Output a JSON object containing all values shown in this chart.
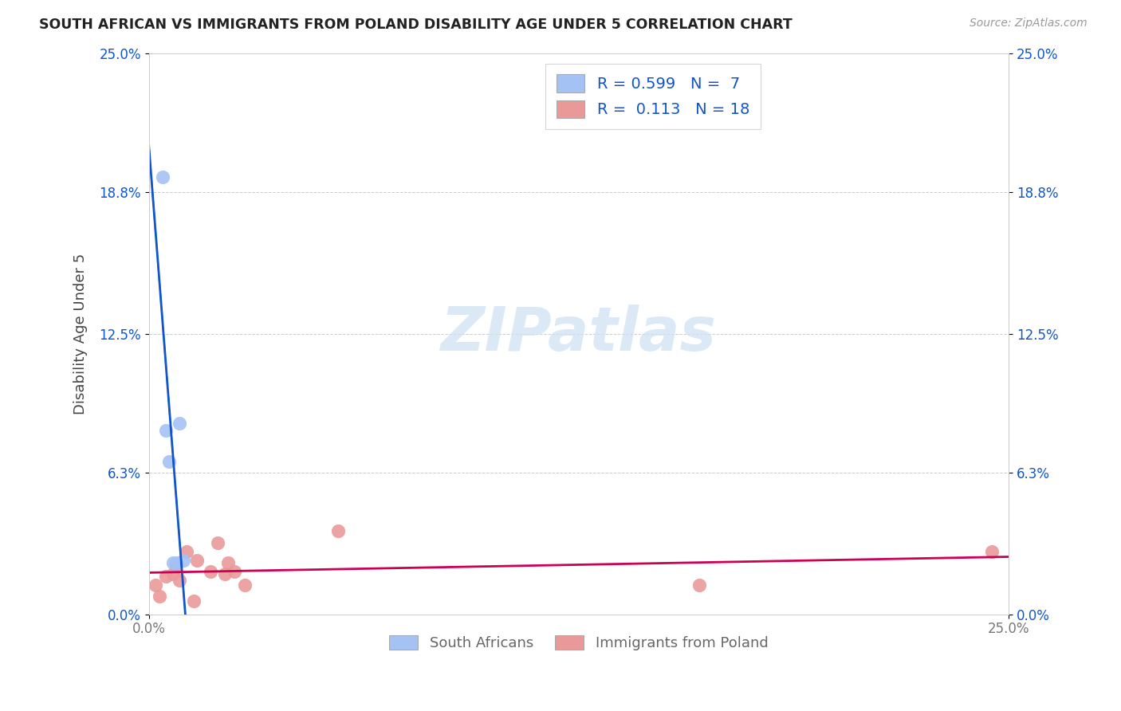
{
  "title": "SOUTH AFRICAN VS IMMIGRANTS FROM POLAND DISABILITY AGE UNDER 5 CORRELATION CHART",
  "source": "Source: ZipAtlas.com",
  "ylabel": "Disability Age Under 5",
  "xlim": [
    0.0,
    0.25
  ],
  "ylim": [
    0.0,
    0.25
  ],
  "ytick_vals": [
    0.0,
    0.063,
    0.125,
    0.188,
    0.25
  ],
  "ytick_labels": [
    "0.0%",
    "6.3%",
    "12.5%",
    "18.8%",
    "25.0%"
  ],
  "xtick_vals": [
    0.0,
    0.25
  ],
  "xtick_labels": [
    "0.0%",
    "25.0%"
  ],
  "grid_color": "#cccccc",
  "bg_color": "#ffffff",
  "blue_color": "#a4c2f4",
  "pink_color": "#ea9999",
  "blue_line_color": "#1155cc",
  "pink_line_color": "#cc0055",
  "watermark_color": "#cfe2f3",
  "watermark_text": "ZIPatlas",
  "legend_line1": "R = 0.599   N =  7",
  "legend_line2": "R =  0.113   N = 18",
  "south_africans_x": [
    0.004,
    0.005,
    0.006,
    0.007,
    0.008,
    0.009,
    0.01
  ],
  "south_africans_y": [
    0.195,
    0.082,
    0.068,
    0.023,
    0.023,
    0.085,
    0.024
  ],
  "poland_x": [
    0.002,
    0.003,
    0.005,
    0.007,
    0.008,
    0.009,
    0.011,
    0.013,
    0.014,
    0.018,
    0.02,
    0.022,
    0.023,
    0.025,
    0.028,
    0.055,
    0.16,
    0.245
  ],
  "poland_y": [
    0.013,
    0.008,
    0.017,
    0.018,
    0.022,
    0.015,
    0.028,
    0.006,
    0.024,
    0.019,
    0.032,
    0.018,
    0.023,
    0.019,
    0.013,
    0.037,
    0.013,
    0.028
  ]
}
